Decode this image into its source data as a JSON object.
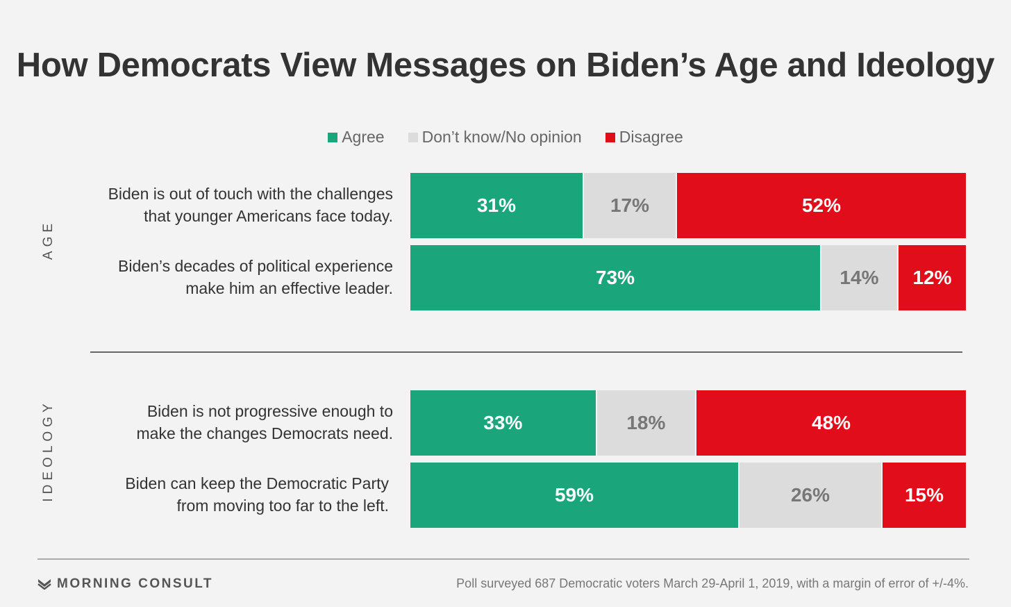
{
  "title": "How Democrats View Messages on Biden’s Age and Ideology",
  "legend": [
    {
      "label": "Agree",
      "color": "#1aa67a"
    },
    {
      "label": "Don’t know/No opinion",
      "color": "#dcdcdc"
    },
    {
      "label": "Disagree",
      "color": "#e10d1b"
    }
  ],
  "groups": {
    "age": "AGE",
    "ideology": "IDEOLOGY"
  },
  "rows": [
    {
      "line1": "Biden is out of touch with the challenges",
      "line2": "that younger Americans face today.",
      "agree_label": "31%",
      "neutral_label": "17%",
      "disagree_label": "52%"
    },
    {
      "line1": "Biden’s decades of political experience",
      "line2": "make him an effective leader.",
      "agree_label": "73%",
      "neutral_label": "14%",
      "disagree_label": "12%"
    },
    {
      "line1": "Biden is not progressive enough to",
      "line2": "make the changes Democrats need.",
      "agree_label": "33%",
      "neutral_label": "18%",
      "disagree_label": "48%"
    },
    {
      "line1": "Biden can keep the Democratic Party",
      "line2": "from moving too far to the left.",
      "agree_label": "59%",
      "neutral_label": "26%",
      "disagree_label": "15%"
    }
  ],
  "footer": {
    "brand": "MORNING CONSULT",
    "note": "Poll surveyed 687 Democratic voters March 29-April 1, 2019, with a margin of error of +/-4%."
  },
  "chart_data": {
    "type": "bar",
    "stacked": true,
    "orientation": "horizontal",
    "title": "How Democrats View Messages on Biden’s Age and Ideology",
    "categories": [
      "Biden is out of touch with the challenges that younger Americans face today.",
      "Biden’s decades of political experience make him an effective leader.",
      "Biden is not progressive enough to make the changes Democrats need.",
      "Biden can keep the Democratic Party from moving too far to the left."
    ],
    "groups": [
      {
        "name": "AGE",
        "categories": [
          0,
          1
        ]
      },
      {
        "name": "IDEOLOGY",
        "categories": [
          2,
          3
        ]
      }
    ],
    "series": [
      {
        "name": "Agree",
        "color": "#1aa67a",
        "values": [
          31,
          73,
          33,
          59
        ]
      },
      {
        "name": "Don’t know/No opinion",
        "color": "#dcdcdc",
        "values": [
          17,
          14,
          18,
          26
        ]
      },
      {
        "name": "Disagree",
        "color": "#e10d1b",
        "values": [
          52,
          12,
          48,
          15
        ]
      }
    ],
    "xlim": [
      0,
      100
    ],
    "legend_position": "top",
    "grid": false
  }
}
